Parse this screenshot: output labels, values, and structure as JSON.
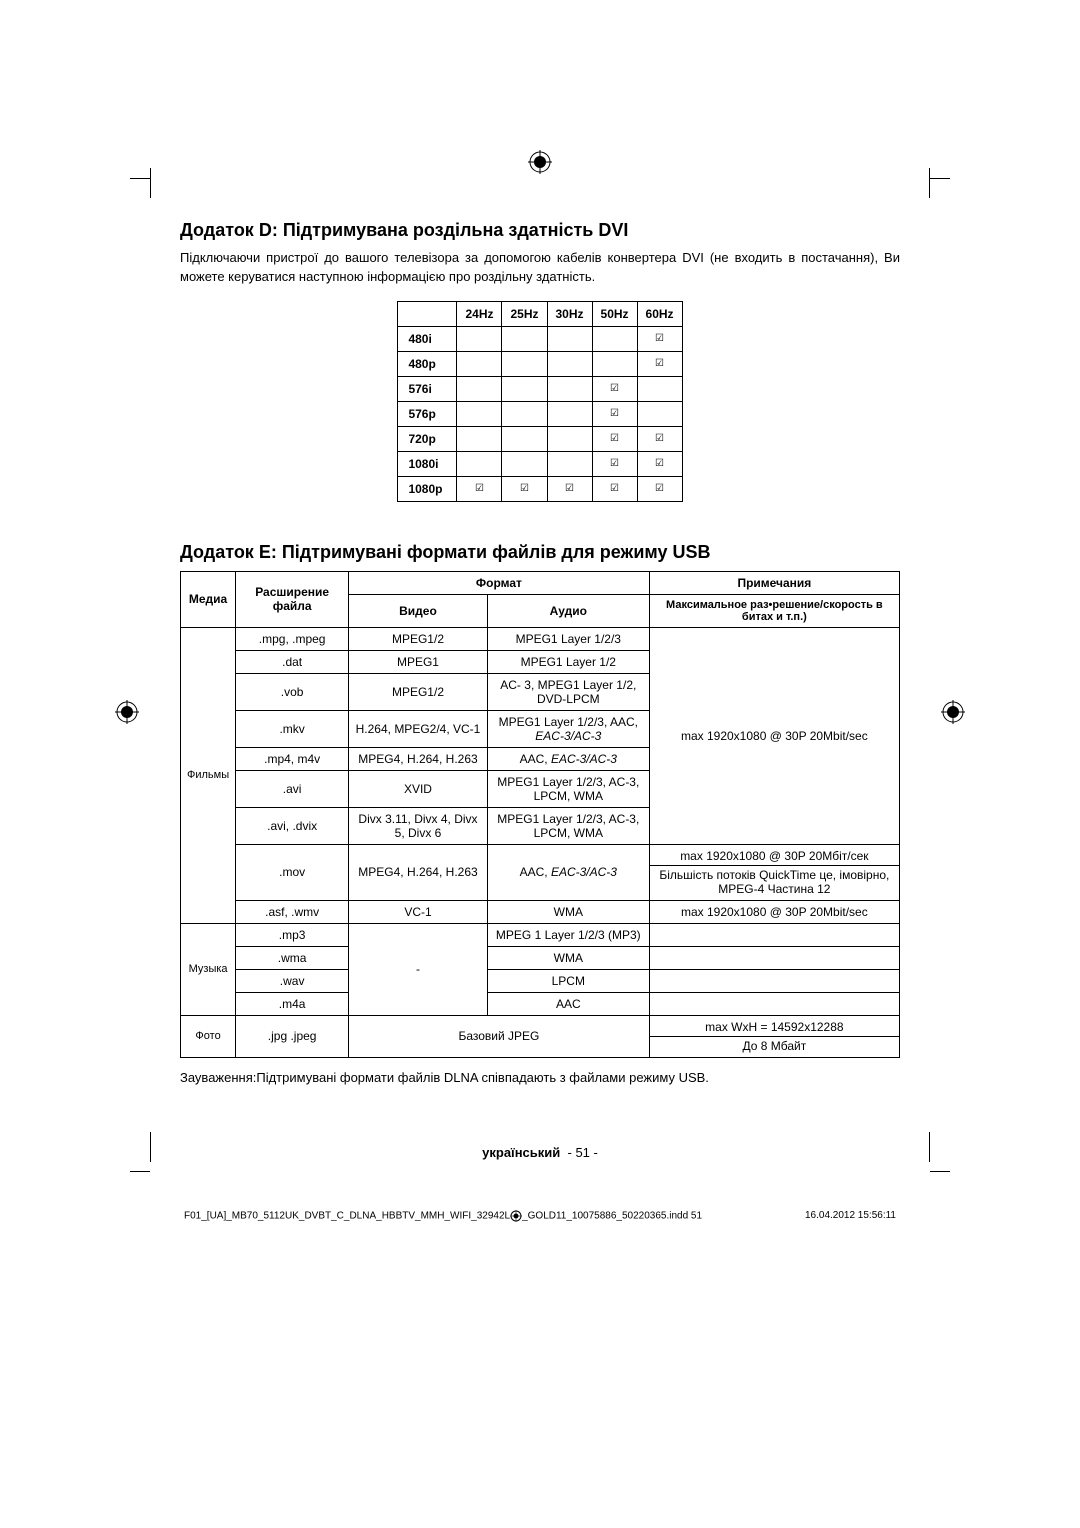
{
  "section_d": {
    "title": "Додаток D: Підтримувана роздільна здатність DVI",
    "intro": "Підключаючи пристрої до вашого телевізора за допомогою кабелів конвертера DVI (не входить в постачання), Ви можете керуватися наступною інформацією про роздільну здатність.",
    "table": {
      "col_headers": [
        "24Hz",
        "25Hz",
        "30Hz",
        "50Hz",
        "60Hz"
      ],
      "rows": [
        {
          "label": "480i",
          "cells": [
            "",
            "",
            "",
            "",
            "☑"
          ]
        },
        {
          "label": "480p",
          "cells": [
            "",
            "",
            "",
            "",
            "☑"
          ]
        },
        {
          "label": "576i",
          "cells": [
            "",
            "",
            "",
            "☑",
            ""
          ]
        },
        {
          "label": "576p",
          "cells": [
            "",
            "",
            "",
            "☑",
            ""
          ]
        },
        {
          "label": "720p",
          "cells": [
            "",
            "",
            "",
            "☑",
            "☑"
          ]
        },
        {
          "label": "1080i",
          "cells": [
            "",
            "",
            "",
            "☑",
            "☑"
          ]
        },
        {
          "label": "1080p",
          "cells": [
            "☑",
            "☑",
            "☑",
            "☑",
            "☑"
          ]
        }
      ]
    }
  },
  "section_e": {
    "title": "Додаток E: Підтримувані формати файлів для режиму USB",
    "headers": {
      "media": "Медиа",
      "ext": "Расширение файла",
      "format": "Формат",
      "video": "Видео",
      "audio": "Аудио",
      "notes": "Примечания",
      "notes_sub": "Максимальное раз•решение/скорость в битах и т.п.)"
    },
    "groups": {
      "movies": "Фильмы",
      "music": "Музыка",
      "photo": "Фото"
    },
    "movies_rows": [
      {
        "ext": ".mpg, .mpeg",
        "video": "MPEG1/2",
        "audio": "MPEG1 Layer 1/2/3"
      },
      {
        "ext": ".dat",
        "video": "MPEG1",
        "audio": "MPEG1 Layer 1/2"
      },
      {
        "ext": ".vob",
        "video": "MPEG1/2",
        "audio": "AC- 3, MPEG1 Layer 1/2, DVD-LPCM"
      },
      {
        "ext": ".mkv",
        "video": "H.264, MPEG2/4, VC-1",
        "audio_plain": "MPEG1 Layer 1/2/3, AAC,",
        "audio_italic": "EAC-3/AC-3"
      },
      {
        "ext": ".mp4, m4v",
        "video": "MPEG4, H.264, H.263",
        "audio_plain": "AAC, ",
        "audio_italic": "EAC-3/AC-3"
      },
      {
        "ext": ".avi",
        "video": "XVID",
        "audio": "MPEG1 Layer 1/2/3, AC-3, LPCM, WMA"
      },
      {
        "ext": ".avi, .dvix",
        "video": "Divx 3.11, Divx 4, Divx 5, Divx 6",
        "audio": "MPEG1 Layer 1/2/3, AC-3, LPCM, WMA"
      }
    ],
    "movies_note_common": "max 1920x1080 @ 30P 20Mbit/sec",
    "mov_row": {
      "ext": ".mov",
      "video": "MPEG4, H.264, H.263",
      "audio_plain": "AAC, ",
      "audio_italic": "EAC-3/AC-3",
      "note_line1": "max 1920x1080 @ 30P 20Мбіт/сек",
      "note_line2": "Більшість потоків QuickTime це, імовірно, MPEG-4 Частина 12"
    },
    "asf_row": {
      "ext": ".asf, .wmv",
      "video": "VC-1",
      "audio": "WMA",
      "note": "max 1920x1080 @ 30P 20Mbit/sec"
    },
    "music_rows": [
      {
        "ext": ".mp3",
        "audio": "MPEG 1 Layer 1/2/3 (MP3)"
      },
      {
        "ext": ".wma",
        "audio": "WMA"
      },
      {
        "ext": ".wav",
        "audio": "LPCM"
      },
      {
        "ext": ".m4a",
        "audio": "AAC"
      }
    ],
    "music_video": "-",
    "photo_row": {
      "ext": ".jpg .jpeg",
      "format": "Базовий  JPEG",
      "note_line1": "max WxH = 14592x12288",
      "note_line2": "До 8 Мбайт"
    },
    "footnote": "Зауваження:Підтримувані формати файлів DLNA співпадають з файлами режиму USB."
  },
  "footer": {
    "lang": "український",
    "page": "- 51 -",
    "file": "F01_[UA]_MB70_5112UK_DVBT_C_DLNA_HBBTV_MMH_WIFI_32942L",
    "file2": "_GOLD11_10075886_50220365.indd   51",
    "date": "16.04.2012   15:56:11"
  }
}
